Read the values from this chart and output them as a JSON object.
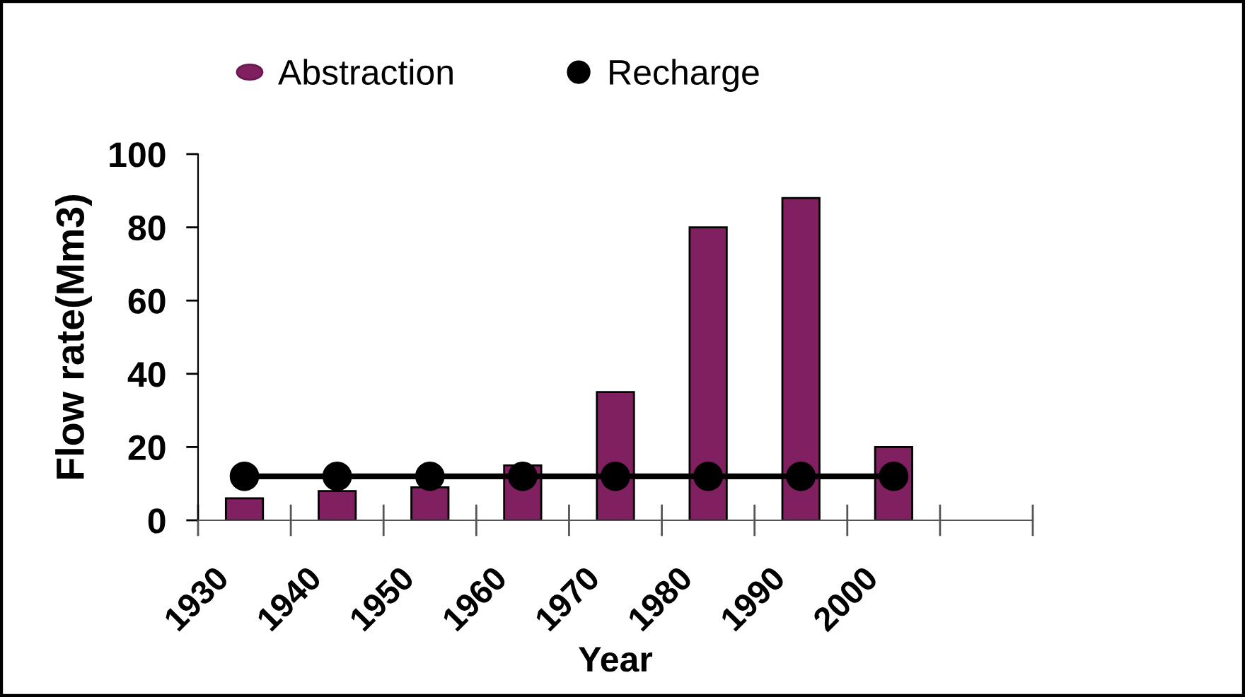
{
  "chart_data": {
    "type": "bar",
    "categories": [
      "1930",
      "1940",
      "1950",
      "1960",
      "1970",
      "1980",
      "1990",
      "2000",
      null
    ],
    "series": [
      {
        "name": "Abstraction",
        "color": "#812060",
        "values": [
          6,
          8,
          9,
          15,
          35,
          80,
          88,
          20,
          null
        ]
      },
      {
        "name": "Recharge",
        "type": "line",
        "color": "#000000",
        "values": [
          12,
          12,
          12,
          12,
          12,
          12,
          12,
          12,
          null
        ]
      }
    ],
    "xlabel": "Year",
    "ylabel": "Flow rate(Mm3)",
    "ylim": [
      0,
      100
    ],
    "yticks": [
      0,
      20,
      40,
      60,
      80,
      100
    ],
    "legend": "top",
    "marker": "circle"
  }
}
